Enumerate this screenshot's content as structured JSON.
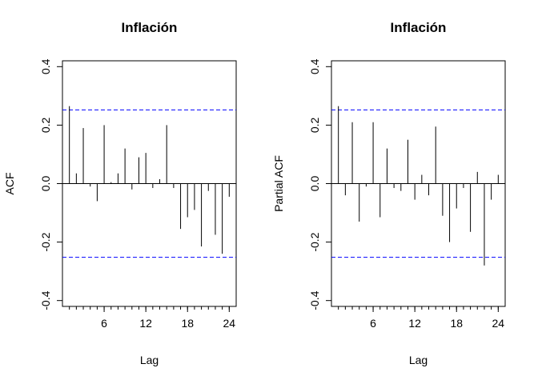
{
  "chart_data": [
    {
      "type": "bar",
      "title": "Inflación",
      "xlabel": "Lag",
      "ylabel": "ACF",
      "ylim": [
        -0.42,
        0.42
      ],
      "xlim": [
        0,
        25
      ],
      "xticks": [
        "6",
        "12",
        "18",
        "24"
      ],
      "yticks": [
        "-0.4",
        "-0.2",
        "0.0",
        "0.2",
        "0.4"
      ],
      "conf_bound": 0.252,
      "lags": [
        1,
        2,
        3,
        4,
        5,
        6,
        7,
        8,
        9,
        10,
        11,
        12,
        13,
        14,
        15,
        16,
        17,
        18,
        19,
        20,
        21,
        22,
        23,
        24
      ],
      "values": [
        0.265,
        0.035,
        0.19,
        -0.01,
        -0.06,
        0.2,
        0.005,
        0.035,
        0.12,
        -0.02,
        0.09,
        0.105,
        -0.015,
        0.015,
        0.2,
        -0.015,
        -0.155,
        -0.115,
        -0.09,
        -0.215,
        -0.025,
        -0.175,
        -0.24,
        -0.045
      ]
    },
    {
      "type": "bar",
      "title": "Inflación",
      "xlabel": "Lag",
      "ylabel": "Partial ACF",
      "ylim": [
        -0.42,
        0.42
      ],
      "xlim": [
        0,
        25
      ],
      "xticks": [
        "6",
        "12",
        "18",
        "24"
      ],
      "yticks": [
        "-0.4",
        "-0.2",
        "0.0",
        "0.2",
        "0.4"
      ],
      "conf_bound": 0.252,
      "lags": [
        1,
        2,
        3,
        4,
        5,
        6,
        7,
        8,
        9,
        10,
        11,
        12,
        13,
        14,
        15,
        16,
        17,
        18,
        19,
        20,
        21,
        22,
        23,
        24
      ],
      "values": [
        0.265,
        -0.04,
        0.21,
        -0.13,
        -0.01,
        0.21,
        -0.115,
        0.12,
        -0.015,
        -0.025,
        0.15,
        -0.055,
        0.03,
        -0.04,
        0.195,
        -0.11,
        -0.2,
        -0.085,
        -0.015,
        -0.165,
        0.04,
        -0.28,
        -0.055,
        0.03
      ]
    }
  ]
}
